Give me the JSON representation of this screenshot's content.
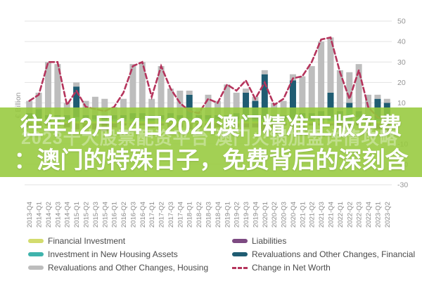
{
  "overlay": {
    "line1": "往年12月14日2024澳门精准正版免费",
    "line2": "：澳门的特殊日子，免费背后的深刻含",
    "watermark": "2023十大股票配资平台  澳门火锅加盟详情攻略",
    "band_color": "#96ca3c",
    "text_color": "#ffffff"
  },
  "chart_data": {
    "type": "bar",
    "subtype": "stacked-bar-with-line",
    "title": "",
    "ylabel": "€ Billion",
    "xlabel": "",
    "ylim": [
      -30,
      50
    ],
    "yticks": [
      50,
      40,
      30,
      20,
      10,
      0,
      -10,
      -20,
      -30
    ],
    "grid": true,
    "legend_position": "bottom",
    "categories": [
      "2013-Q4",
      "2014-Q1",
      "2014-Q2",
      "2014-Q3",
      "2014-Q4",
      "2015-Q1",
      "2015-Q2",
      "2015-Q3",
      "2015-Q4",
      "2016-Q1",
      "2016-Q2",
      "2016-Q3",
      "2016-Q4",
      "2017-Q1",
      "2017-Q2",
      "2017-Q3",
      "2017-Q4",
      "2018-Q1",
      "2018-Q2",
      "2018-Q3",
      "2018-Q4",
      "2019-Q1",
      "2019-Q2",
      "2019-Q3",
      "2019-Q4",
      "2020-Q1",
      "2020-Q2",
      "2020-Q3",
      "2020-Q4",
      "2021-Q1",
      "2021-Q2",
      "2021-Q3",
      "2021-Q4",
      "2022-Q1",
      "2022-Q2",
      "2022-Q3",
      "2022-Q4",
      "2023-Q1",
      "2023-Q2"
    ],
    "series": [
      {
        "name": "Financial Investment",
        "color": "#d3dc6e",
        "values": [
          1,
          1,
          1,
          1,
          1,
          1,
          1,
          1,
          1,
          1,
          1,
          1,
          1,
          1,
          1,
          1,
          1,
          1,
          1,
          1,
          1,
          1,
          1,
          1,
          1,
          1,
          1,
          1,
          1,
          1,
          1,
          1,
          1,
          1,
          1,
          1,
          1,
          1,
          1
        ]
      },
      {
        "name": "Investment in New Housing Assets",
        "color": "#3fb3ac",
        "values": [
          1,
          1,
          1,
          1,
          1,
          2,
          1,
          1,
          1,
          1,
          1,
          1,
          1,
          1,
          1,
          1,
          1,
          1,
          1,
          1,
          1,
          1,
          1,
          2,
          1,
          1,
          1,
          1,
          1,
          1,
          1,
          1,
          2,
          2,
          6,
          2,
          1,
          1,
          1
        ]
      },
      {
        "name": "Revaluations and Other Changes, Financial",
        "color": "#1f5c72",
        "values": [
          3,
          5,
          2,
          2,
          2,
          15,
          2,
          2,
          2,
          2,
          2,
          3,
          3,
          2,
          2,
          3,
          2,
          12,
          2,
          2,
          2,
          2,
          3,
          12,
          9,
          22,
          2,
          2,
          19,
          3,
          3,
          4,
          12,
          3,
          3,
          3,
          2,
          10,
          8
        ]
      },
      {
        "name": "Revaluations and Other Changes, Housing",
        "color": "#bdbdbd",
        "values": [
          6,
          8,
          26,
          25,
          6,
          2,
          7,
          9,
          8,
          4,
          8,
          24,
          25,
          8,
          24,
          12,
          12,
          2,
          3,
          10,
          7,
          15,
          10,
          2,
          2,
          2,
          6,
          7,
          3,
          18,
          23,
          34,
          27,
          20,
          15,
          23,
          10,
          2,
          2
        ]
      },
      {
        "name": "Liabilities",
        "color": "#7d4a82",
        "values": [
          -2,
          -2,
          -1,
          -1,
          -2,
          -3,
          -2,
          -3,
          -4,
          -2,
          -1,
          -1,
          -1,
          -2,
          -1,
          -2,
          -2,
          -3,
          -2,
          -2,
          -2,
          -1,
          -2,
          -2,
          -2,
          -4,
          -2,
          -1,
          -2,
          -2,
          -1,
          -1,
          -1,
          -2,
          -2,
          -1,
          -3,
          -3,
          -4
        ]
      }
    ],
    "line_series": {
      "name": "Change in Net Worth",
      "color": "#b5345c",
      "dashed": true,
      "values": [
        11,
        14,
        30,
        30,
        9,
        16,
        8,
        7,
        6,
        8,
        15,
        28,
        30,
        13,
        28,
        17,
        10,
        6,
        5,
        12,
        10,
        19,
        16,
        21,
        12,
        20,
        9,
        12,
        22,
        23,
        30,
        41,
        42,
        25,
        12,
        26,
        8,
        3,
        1
      ]
    },
    "axis_text_color": "#959595",
    "grid_color": "#e3e3e3"
  },
  "legend": {
    "columns": [
      {
        "items": [
          {
            "label": "Financial Investment",
            "color": "#d3dc6e",
            "swatch": "box"
          },
          {
            "label": "Investment in New Housing Assets",
            "color": "#3fb3ac",
            "swatch": "box"
          },
          {
            "label": "Revaluations and Other Changes, Housing",
            "color": "#bdbdbd",
            "swatch": "box"
          }
        ]
      },
      {
        "items": [
          {
            "label": "Liabilities",
            "color": "#7d4a82",
            "swatch": "box"
          },
          {
            "label": "Revaluations and Other Changes, Financial",
            "color": "#1f5c72",
            "swatch": "box"
          },
          {
            "label": "Change in Net Worth",
            "color": "#b5345c",
            "swatch": "dash"
          }
        ]
      }
    ]
  }
}
